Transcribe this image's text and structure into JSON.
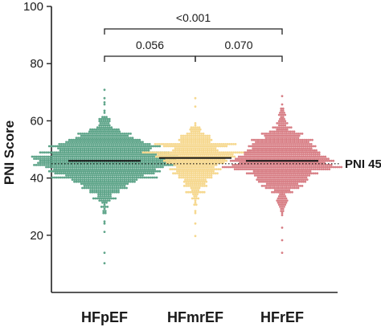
{
  "chart_data": {
    "type": "scatter",
    "subtype": "beeswarm",
    "ylabel": "PNI Score",
    "ylim": [
      0,
      100
    ],
    "yticks": [
      20,
      40,
      60,
      80,
      100
    ],
    "categories": [
      "HFpEF",
      "HFmrEF",
      "HFrEF"
    ],
    "series": [
      {
        "category": "HFpEF",
        "color": "#5fa58a",
        "median": 46,
        "min": 10,
        "max": 71,
        "q1": 42,
        "q3": 50,
        "n_dots": 1400
      },
      {
        "category": "HFmrEF",
        "color": "#f6d88f",
        "median": 47,
        "min": 20,
        "max": 68,
        "q1": 43,
        "q3": 50,
        "n_dots": 650
      },
      {
        "category": "HFrEF",
        "color": "#d87f86",
        "median": 46,
        "min": 14,
        "max": 69,
        "q1": 42,
        "q3": 50,
        "n_dots": 1000
      }
    ],
    "reference_line": {
      "value": 45,
      "label": "PNI 45",
      "style": "dotted"
    },
    "comparisons": [
      {
        "from": "HFpEF",
        "to": "HFmrEF",
        "p_value": "0.056"
      },
      {
        "from": "HFmrEF",
        "to": "HFrEF",
        "p_value": "0.070"
      },
      {
        "from": "HFpEF",
        "to": "HFrEF",
        "p_value": "<0.001"
      }
    ],
    "grid": false
  }
}
